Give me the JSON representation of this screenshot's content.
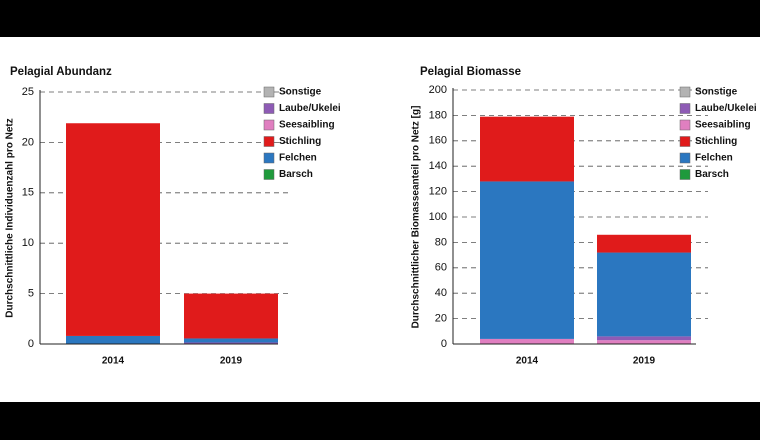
{
  "chart_data": [
    {
      "type": "bar",
      "stacked": true,
      "title": "Pelagial Abundanz",
      "y_label": "Durchschnittliche Individuenzahl pro Netz",
      "categories": [
        "2014",
        "2019"
      ],
      "ylim": [
        0,
        25
      ],
      "yticks": [
        0,
        5,
        10,
        15,
        20,
        25
      ],
      "grid": true,
      "series": [
        {
          "name": "Sonstige",
          "color": "#b3b3b3",
          "values": [
            0,
            0
          ]
        },
        {
          "name": "Laube/Ukelei",
          "color": "#8e5bb5",
          "values": [
            0,
            0.1
          ]
        },
        {
          "name": "Seesaibling",
          "color": "#e07fc0",
          "values": [
            0,
            0.05
          ]
        },
        {
          "name": "Stichling",
          "color": "#e01b1b",
          "values": [
            21.1,
            4.45
          ]
        },
        {
          "name": "Felchen",
          "color": "#2b77c0",
          "values": [
            0.8,
            0.4
          ]
        },
        {
          "name": "Barsch",
          "color": "#1f9a3c",
          "values": [
            0,
            0
          ]
        }
      ]
    },
    {
      "type": "bar",
      "stacked": true,
      "title": "Pelagial Biomasse",
      "y_label": "Durchschnittlicher Biomasseanteil pro Netz [g]",
      "categories": [
        "2014",
        "2019"
      ],
      "ylim": [
        0,
        200
      ],
      "yticks": [
        0,
        20,
        40,
        60,
        80,
        100,
        120,
        140,
        160,
        180,
        200
      ],
      "grid": true,
      "series": [
        {
          "name": "Sonstige",
          "color": "#b3b3b3",
          "values": [
            0,
            0
          ]
        },
        {
          "name": "Laube/Ukelei",
          "color": "#8e5bb5",
          "values": [
            0,
            3
          ]
        },
        {
          "name": "Seesaibling",
          "color": "#e07fc0",
          "values": [
            4,
            3
          ]
        },
        {
          "name": "Stichling",
          "color": "#e01b1b",
          "values": [
            51,
            14
          ]
        },
        {
          "name": "Felchen",
          "color": "#2b77c0",
          "values": [
            124,
            66
          ]
        },
        {
          "name": "Barsch",
          "color": "#1f9a3c",
          "values": [
            0,
            0
          ]
        }
      ]
    }
  ]
}
